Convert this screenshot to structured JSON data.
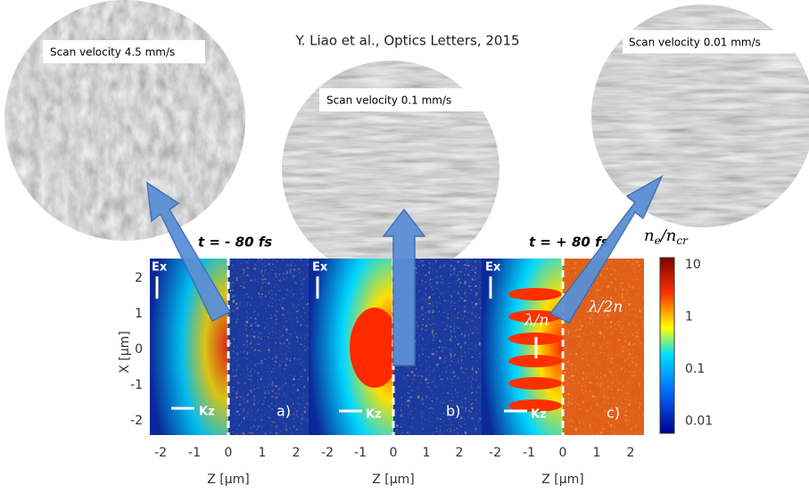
{
  "title": "Y. Liao et al., Optics Letters, 2015",
  "images": [
    {
      "label": "Scan velocity 4.5 mm/s"
    },
    {
      "label": "Scan velocity 0.1 mm/s"
    },
    {
      "label": "Scan velocity 0.01 mm/s"
    }
  ],
  "panels": [
    {
      "time": "t = - 80 fs",
      "label": "a)",
      "x_axis_label": "Z [µm]"
    },
    {
      "label": "b)",
      "x_axis_label": "Z [µm]"
    },
    {
      "time": "t = + 80 fs",
      "label": "c)",
      "x_axis_label": "Z [µm]",
      "annotations": [
        "λ/n",
        "λ/2n"
      ]
    }
  ],
  "field_label": "Ex",
  "wave_label": "Kz",
  "y_axis_label": "X [µm]",
  "x_ticks": [
    -2,
    -1,
    0,
    1,
    2
  ],
  "y_ticks": [
    2,
    1,
    0,
    -1,
    -2
  ],
  "colorbar": {
    "label": [
      "n",
      "e",
      "/n",
      "cr"
    ],
    "ticks": [
      "10",
      "1",
      "0.1",
      "0.01"
    ]
  }
}
